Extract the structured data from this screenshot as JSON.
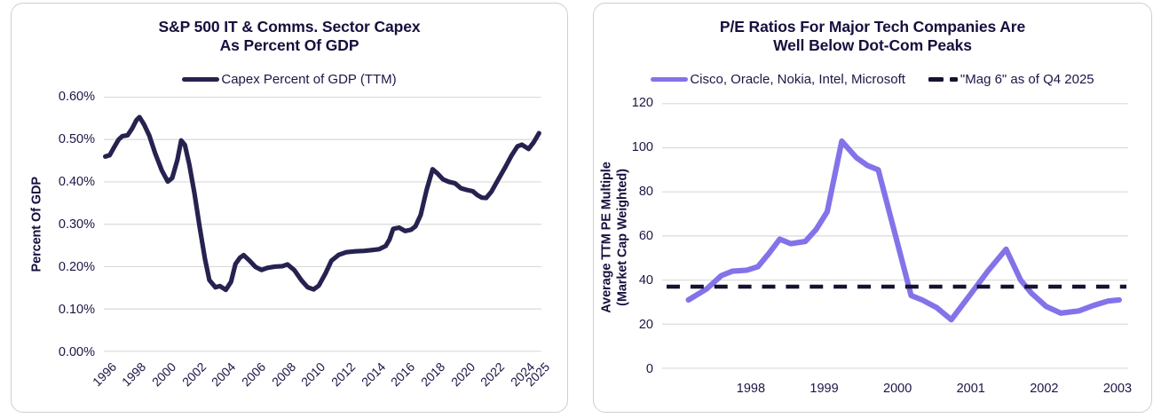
{
  "page": {
    "background": "#ffffff",
    "card_border": "#cfcfd4",
    "grid_color": "#dadada",
    "ink_color": "#1b1645"
  },
  "charts": [
    {
      "id": "capex",
      "title_line1": "S&P 500 IT & Comms. Sector Capex",
      "title_line2": "As Percent Of GDP",
      "y_axis_title_lines": [
        "Percent Of GDP"
      ],
      "legend": [
        {
          "label": "Capex Percent of GDP (TTM)",
          "color": "#262250",
          "style": "solid"
        }
      ],
      "chart_data": {
        "type": "line",
        "title": "S&P 500 IT & Comms. Sector Capex As Percent Of GDP",
        "xlabel": "",
        "ylabel": "Percent Of GDP",
        "xlim": [
          1995.9,
          2025.3
        ],
        "ylim": [
          0,
          0.6
        ],
        "grid": "horizontal",
        "legend_position": "top",
        "y_ticks": [
          {
            "v": 0.0,
            "label": "0.00%"
          },
          {
            "v": 0.1,
            "label": "0.10%"
          },
          {
            "v": 0.2,
            "label": "0.20%"
          },
          {
            "v": 0.3,
            "label": "0.30%"
          },
          {
            "v": 0.4,
            "label": "0.40%"
          },
          {
            "v": 0.5,
            "label": "0.50%"
          },
          {
            "v": 0.6,
            "label": "0.60%"
          }
        ],
        "x_ticks": [
          {
            "v": 1996,
            "label": "1996"
          },
          {
            "v": 1998,
            "label": "1998"
          },
          {
            "v": 2000,
            "label": "2000"
          },
          {
            "v": 2002,
            "label": "2002"
          },
          {
            "v": 2004,
            "label": "2004"
          },
          {
            "v": 2006,
            "label": "2006"
          },
          {
            "v": 2008,
            "label": "2008"
          },
          {
            "v": 2010,
            "label": "2010"
          },
          {
            "v": 2012,
            "label": "2012"
          },
          {
            "v": 2014,
            "label": "2014"
          },
          {
            "v": 2016,
            "label": "2016"
          },
          {
            "v": 2018,
            "label": "2018"
          },
          {
            "v": 2020,
            "label": "2020"
          },
          {
            "v": 2022,
            "label": "2022"
          },
          {
            "v": 2024,
            "label": "2024"
          },
          {
            "v": 2025,
            "label": "2025"
          }
        ],
        "series": [
          {
            "name": "Capex Percent of GDP (TTM)",
            "key": "capex_pct_gdp",
            "color": "#262250",
            "style": "solid",
            "points": [
              [
                1996.0,
                0.46
              ],
              [
                1996.3,
                0.463
              ],
              [
                1996.6,
                0.482
              ],
              [
                1996.9,
                0.5
              ],
              [
                1997.15,
                0.508
              ],
              [
                1997.5,
                0.51
              ],
              [
                1997.8,
                0.526
              ],
              [
                1998.1,
                0.546
              ],
              [
                1998.3,
                0.553
              ],
              [
                1998.6,
                0.536
              ],
              [
                1998.95,
                0.51
              ],
              [
                1999.35,
                0.468
              ],
              [
                1999.8,
                0.427
              ],
              [
                2000.2,
                0.401
              ],
              [
                2000.5,
                0.409
              ],
              [
                2000.85,
                0.452
              ],
              [
                2001.1,
                0.498
              ],
              [
                2001.35,
                0.487
              ],
              [
                2001.65,
                0.441
              ],
              [
                2002.0,
                0.372
              ],
              [
                2002.35,
                0.292
              ],
              [
                2002.7,
                0.218
              ],
              [
                2003.0,
                0.168
              ],
              [
                2003.4,
                0.151
              ],
              [
                2003.7,
                0.154
              ],
              [
                2004.1,
                0.145
              ],
              [
                2004.45,
                0.164
              ],
              [
                2004.75,
                0.206
              ],
              [
                2005.05,
                0.221
              ],
              [
                2005.3,
                0.227
              ],
              [
                2005.7,
                0.214
              ],
              [
                2006.1,
                0.199
              ],
              [
                2006.5,
                0.192
              ],
              [
                2006.9,
                0.197
              ],
              [
                2007.4,
                0.2
              ],
              [
                2007.9,
                0.201
              ],
              [
                2008.25,
                0.205
              ],
              [
                2008.7,
                0.192
              ],
              [
                2009.2,
                0.167
              ],
              [
                2009.6,
                0.151
              ],
              [
                2010.0,
                0.146
              ],
              [
                2010.35,
                0.155
              ],
              [
                2010.8,
                0.184
              ],
              [
                2011.2,
                0.214
              ],
              [
                2011.7,
                0.228
              ],
              [
                2012.2,
                0.234
              ],
              [
                2012.8,
                0.236
              ],
              [
                2013.4,
                0.237
              ],
              [
                2013.9,
                0.239
              ],
              [
                2014.4,
                0.241
              ],
              [
                2014.85,
                0.249
              ],
              [
                2015.1,
                0.264
              ],
              [
                2015.35,
                0.289
              ],
              [
                2015.75,
                0.292
              ],
              [
                2016.15,
                0.284
              ],
              [
                2016.55,
                0.287
              ],
              [
                2016.85,
                0.295
              ],
              [
                2017.2,
                0.322
              ],
              [
                2017.6,
                0.382
              ],
              [
                2018.0,
                0.43
              ],
              [
                2018.35,
                0.419
              ],
              [
                2018.7,
                0.406
              ],
              [
                2019.1,
                0.4
              ],
              [
                2019.5,
                0.397
              ],
              [
                2019.9,
                0.385
              ],
              [
                2020.3,
                0.381
              ],
              [
                2020.7,
                0.378
              ],
              [
                2021.0,
                0.369
              ],
              [
                2021.3,
                0.363
              ],
              [
                2021.6,
                0.362
              ],
              [
                2021.95,
                0.377
              ],
              [
                2022.4,
                0.405
              ],
              [
                2022.9,
                0.436
              ],
              [
                2023.3,
                0.462
              ],
              [
                2023.7,
                0.484
              ],
              [
                2024.0,
                0.488
              ],
              [
                2024.45,
                0.478
              ],
              [
                2024.8,
                0.494
              ],
              [
                2025.15,
                0.515
              ]
            ]
          }
        ]
      }
    },
    {
      "id": "pe",
      "title_line1": "P/E Ratios For Major Tech Companies Are",
      "title_line2": "Well Below Dot-Com Peaks",
      "y_axis_title_lines": [
        "Average TTM PE Multiple",
        "(Market Cap Weighted)"
      ],
      "legend": [
        {
          "label": "Cisco, Oracle, Nokia, Intel, Microsoft",
          "color": "#8373e9",
          "style": "solid"
        },
        {
          "label": "\"Mag 6\" as of Q4 2025",
          "color": "#17122f",
          "style": "dashed"
        }
      ],
      "chart_data": {
        "type": "line",
        "title": "P/E Ratios For Major Tech Companies Are Well Below Dot-Com Peaks",
        "xlabel": "",
        "ylabel": "Average TTM PE Multiple (Market Cap Weighted)",
        "xlim": [
          1996.79,
          2003.17
        ],
        "ylim": [
          0,
          120
        ],
        "grid": "horizontal",
        "legend_position": "top",
        "y_ticks": [
          {
            "v": 0,
            "label": "0"
          },
          {
            "v": 20,
            "label": "20"
          },
          {
            "v": 40,
            "label": "40"
          },
          {
            "v": 60,
            "label": "60"
          },
          {
            "v": 80,
            "label": "80"
          },
          {
            "v": 100,
            "label": "100"
          },
          {
            "v": 120,
            "label": "120"
          }
        ],
        "x_ticks": [
          {
            "v": 1998,
            "label": "1998"
          },
          {
            "v": 1999,
            "label": "1999"
          },
          {
            "v": 2000,
            "label": "2000"
          },
          {
            "v": 2001,
            "label": "2001"
          },
          {
            "v": 2002,
            "label": "2002"
          },
          {
            "v": 2003,
            "label": "2003"
          }
        ],
        "series": [
          {
            "name": "Cisco, Oracle, Nokia, Intel, Microsoft",
            "key": "tech_basket_pe",
            "color": "#8373e9",
            "style": "solid",
            "points": [
              [
                1997.15,
                31
              ],
              [
                1997.4,
                36
              ],
              [
                1997.6,
                42
              ],
              [
                1997.75,
                44
              ],
              [
                1997.95,
                44.5
              ],
              [
                1998.1,
                46
              ],
              [
                1998.25,
                52
              ],
              [
                1998.4,
                58.5
              ],
              [
                1998.55,
                56.5
              ],
              [
                1998.75,
                57.5
              ],
              [
                1998.9,
                63
              ],
              [
                1999.05,
                71
              ],
              [
                1999.25,
                103
              ],
              [
                1999.45,
                95.5
              ],
              [
                1999.6,
                92
              ],
              [
                1999.75,
                90
              ],
              [
                2000.2,
                33
              ],
              [
                2000.35,
                31
              ],
              [
                2000.55,
                27.5
              ],
              [
                2000.75,
                22
              ],
              [
                2001.0,
                33
              ],
              [
                2001.25,
                44
              ],
              [
                2001.5,
                54
              ],
              [
                2001.7,
                40
              ],
              [
                2001.85,
                34
              ],
              [
                2002.05,
                28
              ],
              [
                2002.25,
                25
              ],
              [
                2002.5,
                26
              ],
              [
                2002.7,
                28.5
              ],
              [
                2002.9,
                30.5
              ],
              [
                2003.05,
                31
              ]
            ]
          },
          {
            "name": "\"Mag 6\" as of Q4 2025",
            "key": "mag6_pe",
            "color": "#17122f",
            "style": "dashed",
            "points": [
              [
                1996.85,
                37
              ],
              [
                2003.15,
                37
              ]
            ]
          }
        ]
      }
    }
  ]
}
